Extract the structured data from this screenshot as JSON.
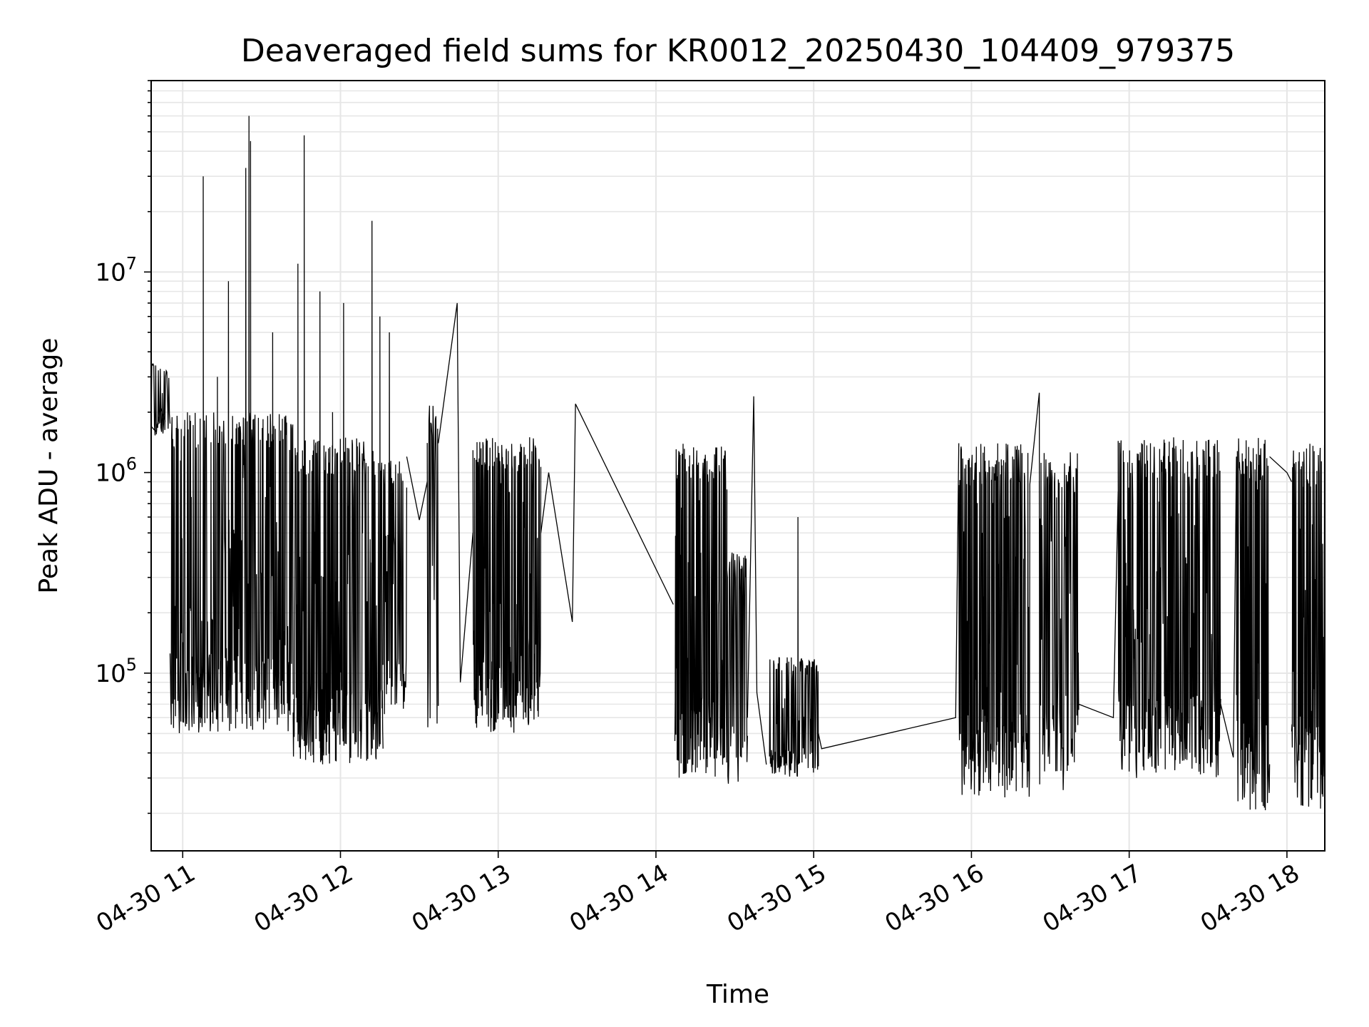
{
  "chart_data": {
    "type": "line",
    "title": "Deaveraged field sums for KR0012_20250430_104409_979375",
    "xlabel": "Time",
    "ylabel": "Peak ADU - average",
    "yscale": "log",
    "grid": true,
    "ylim": [
      13000,
      90000000
    ],
    "xlim_hours": [
      10.8,
      18.24
    ],
    "x_ticks": [
      {
        "value": 11,
        "label": "04-30 11"
      },
      {
        "value": 12,
        "label": "04-30 12"
      },
      {
        "value": 13,
        "label": "04-30 13"
      },
      {
        "value": 14,
        "label": "04-30 14"
      },
      {
        "value": 15,
        "label": "04-30 15"
      },
      {
        "value": 16,
        "label": "04-30 16"
      },
      {
        "value": 17,
        "label": "04-30 17"
      },
      {
        "value": 18,
        "label": "04-30 18"
      }
    ],
    "y_ticks": [
      {
        "value": 100000,
        "base": "10",
        "exp": "5"
      },
      {
        "value": 1000000,
        "base": "10",
        "exp": "6"
      },
      {
        "value": 10000000,
        "base": "10",
        "exp": "7"
      }
    ],
    "series": [
      {
        "name": "deaveraged field sum",
        "color": "#000000",
        "segments": [
          {
            "x0": 10.8,
            "x1": 10.92,
            "lo": 1500000,
            "hi": 3500000,
            "n": 30,
            "spikes": []
          },
          {
            "x0": 10.92,
            "x1": 11.7,
            "lo": 50000,
            "hi": 2000000,
            "n": 320,
            "spikes": [
              [
                11.13,
                30000000
              ],
              [
                11.42,
                60000000
              ],
              [
                11.43,
                45000000
              ],
              [
                11.4,
                33000000
              ],
              [
                11.29,
                9000000
              ],
              [
                11.22,
                3000000
              ],
              [
                11.57,
                5000000
              ]
            ]
          },
          {
            "x0": 11.7,
            "x1": 12.27,
            "lo": 35000,
            "hi": 1500000,
            "n": 260,
            "spikes": [
              [
                11.73,
                11000000
              ],
              [
                11.77,
                48000000
              ],
              [
                11.87,
                8000000
              ],
              [
                12.02,
                7000000
              ],
              [
                12.2,
                18000000
              ],
              [
                12.25,
                6000000
              ],
              [
                11.95,
                2000000
              ]
            ]
          },
          {
            "x0": 12.27,
            "x1": 12.42,
            "lo": 60000,
            "hi": 1200000,
            "n": 50,
            "spikes": [
              [
                12.31,
                5000000
              ]
            ]
          },
          {
            "x0": 12.55,
            "x1": 12.62,
            "lo": 45000,
            "hi": 2200000,
            "n": 20,
            "spikes": []
          },
          {
            "x0": 12.84,
            "x1": 13.27,
            "lo": 50000,
            "hi": 1500000,
            "n": 220,
            "spikes": []
          },
          {
            "x0": 14.12,
            "x1": 14.45,
            "lo": 30000,
            "hi": 1400000,
            "n": 160,
            "spikes": []
          },
          {
            "x0": 14.45,
            "x1": 14.58,
            "lo": 28000,
            "hi": 400000,
            "n": 45,
            "spikes": []
          },
          {
            "x0": 14.72,
            "x1": 15.03,
            "lo": 30000,
            "hi": 120000,
            "n": 120,
            "spikes": [
              [
                14.9,
                600000
              ],
              [
                14.78,
                120000
              ]
            ]
          },
          {
            "x0": 15.92,
            "x1": 16.37,
            "lo": 24000,
            "hi": 1400000,
            "n": 220,
            "spikes": [
              [
                16.43,
                2500000
              ]
            ]
          },
          {
            "x0": 16.43,
            "x1": 16.68,
            "lo": 26000,
            "hi": 1300000,
            "n": 90,
            "spikes": []
          },
          {
            "x0": 16.93,
            "x1": 17.58,
            "lo": 30000,
            "hi": 1500000,
            "n": 280,
            "spikes": []
          },
          {
            "x0": 17.68,
            "x1": 17.89,
            "lo": 20000,
            "hi": 1500000,
            "n": 110,
            "spikes": []
          },
          {
            "x0": 18.03,
            "x1": 18.24,
            "lo": 20000,
            "hi": 1400000,
            "n": 110,
            "spikes": []
          }
        ],
        "connectors": [
          [
            [
              10.8,
              1700000
            ],
            [
              10.83,
              1600000
            ],
            [
              10.86,
              2100000
            ],
            [
              10.89,
              1800000
            ]
          ],
          [
            [
              12.42,
              1200000
            ],
            [
              12.5,
              580000
            ],
            [
              12.55,
              900000
            ]
          ],
          [
            [
              12.62,
              1400000
            ],
            [
              12.74,
              7000000
            ],
            [
              12.76,
              90000
            ],
            [
              12.84,
              500000
            ]
          ],
          [
            [
              13.27,
              500000
            ],
            [
              13.32,
              1000000
            ],
            [
              13.47,
              180000
            ],
            [
              13.49,
              2200000
            ],
            [
              14.11,
              220000
            ]
          ],
          [
            [
              14.58,
              60000
            ],
            [
              14.62,
              2400000
            ],
            [
              14.64,
              80000
            ],
            [
              14.7,
              35000
            ]
          ],
          [
            [
              15.03,
              50000
            ],
            [
              15.05,
              42000
            ],
            [
              15.9,
              60000
            ],
            [
              15.92,
              1400000
            ]
          ],
          [
            [
              16.68,
              70000
            ],
            [
              16.9,
              60000
            ],
            [
              16.93,
              800000
            ]
          ],
          [
            [
              17.58,
              70000
            ],
            [
              17.66,
              38000
            ],
            [
              17.68,
              1200000
            ]
          ],
          [
            [
              17.89,
              1200000
            ],
            [
              18.0,
              1000000
            ],
            [
              18.03,
              900000
            ]
          ]
        ]
      }
    ]
  }
}
